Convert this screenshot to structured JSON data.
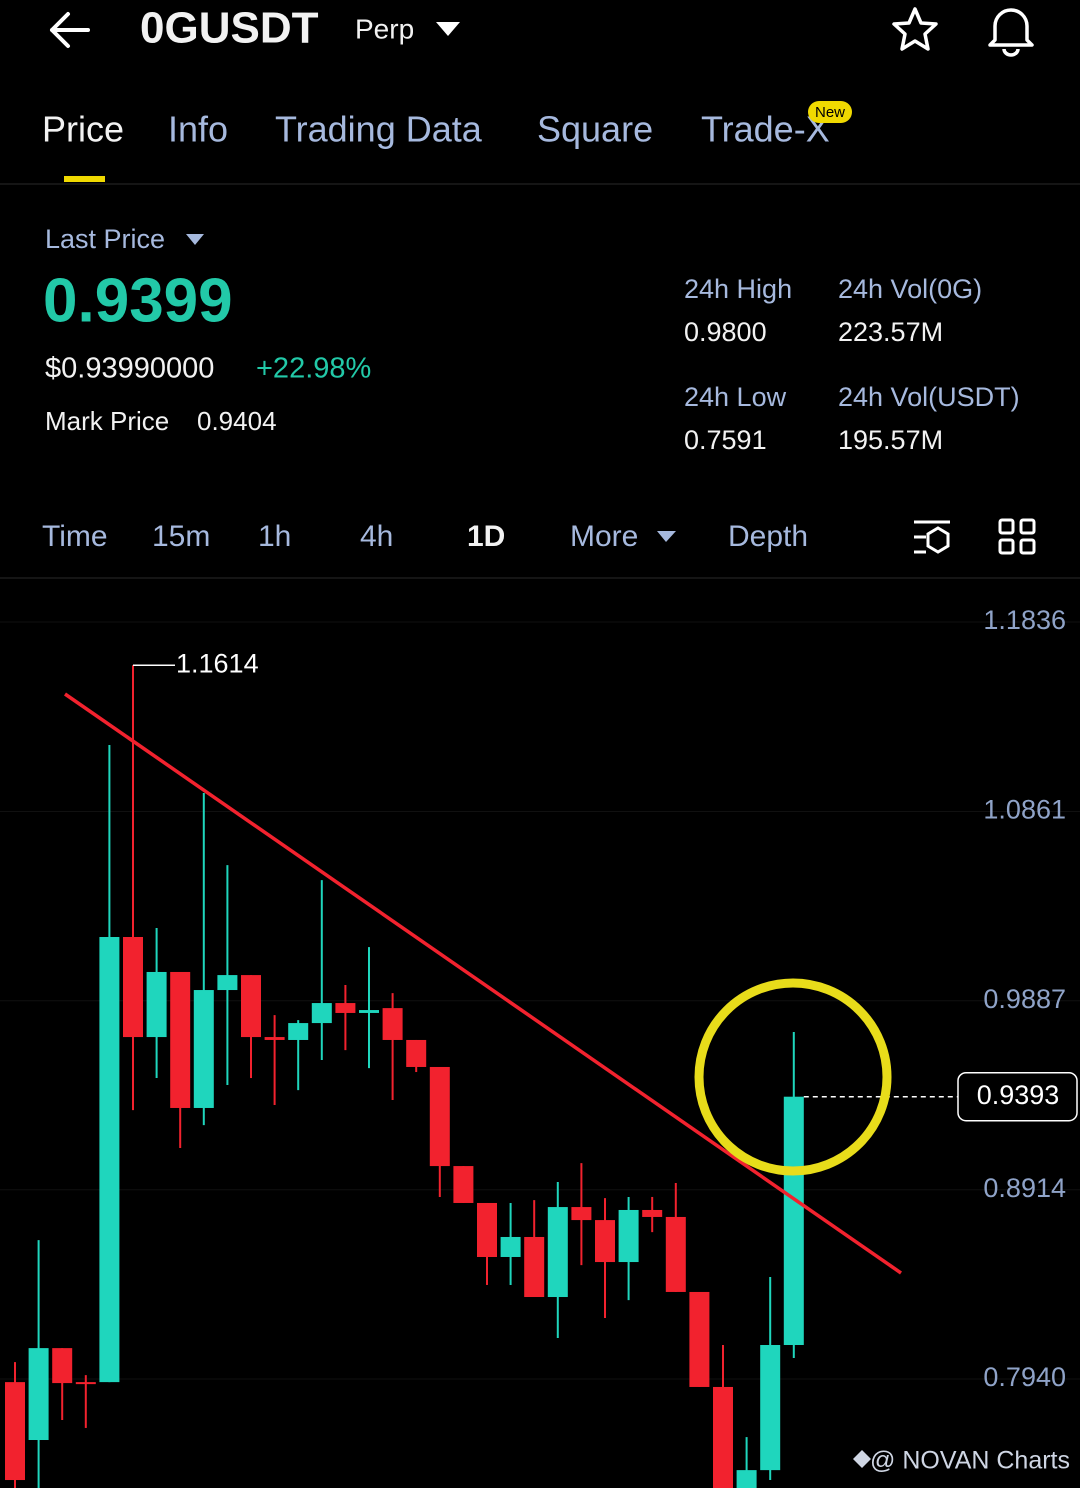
{
  "header": {
    "symbol": "0GUSDT",
    "contract": "Perp"
  },
  "tabs": [
    "Price",
    "Info",
    "Trading Data",
    "Square",
    "Trade-X"
  ],
  "badge": "New",
  "price_panel": {
    "price_type": "Last Price",
    "last_price": "0.9399",
    "usd_price": "$0.93990000",
    "change": "+22.98%",
    "mark_label": "Mark Price",
    "mark_price": "0.9404"
  },
  "stats": [
    {
      "label": "24h High",
      "value": "0.9800"
    },
    {
      "label": "24h Vol(0G)",
      "value": "223.57M"
    },
    {
      "label": "24h Low",
      "value": "0.7591"
    },
    {
      "label": "24h Vol(USDT)",
      "value": "195.57M"
    }
  ],
  "intervals": [
    "Time",
    "15m",
    "1h",
    "4h",
    "1D",
    "More",
    "Depth"
  ],
  "watermark": "@ NOVAN Charts",
  "chart_data": {
    "type": "candlestick",
    "open": [
      0.7924,
      0.7626,
      0.8099,
      0.7924,
      0.7924,
      1.0215,
      0.97,
      1.0035,
      0.9335,
      0.9942,
      1.0019,
      0.97,
      0.9685,
      0.9772,
      0.9875,
      0.9824,
      0.9849,
      0.9685,
      0.9546,
      0.9036,
      0.8846,
      0.8568,
      0.8671,
      0.8362,
      0.8825,
      0.8758,
      0.8542,
      0.881,
      0.8774,
      0.8388,
      0.7899,
      0.7379,
      0.7471,
      0.8115
    ],
    "high": [
      0.8027,
      0.8655,
      0.8099,
      0.796,
      1.1203,
      1.1614,
      1.0261,
      1.0035,
      1.0956,
      1.0585,
      1.0019,
      0.9813,
      0.9787,
      1.0508,
      0.9968,
      1.0163,
      0.9926,
      0.9685,
      0.9546,
      0.9036,
      0.8846,
      0.8846,
      0.8861,
      0.8954,
      0.9051,
      0.8871,
      0.8877,
      0.8877,
      0.8949,
      0.8388,
      0.8115,
      0.7641,
      0.8465,
      0.9726
    ],
    "low": [
      0.7379,
      0.7379,
      0.7729,
      0.7688,
      0.7924,
      0.9324,
      0.9489,
      0.9129,
      0.9247,
      0.9453,
      0.9489,
      0.935,
      0.9427,
      0.9582,
      0.9633,
      0.954,
      0.9376,
      0.952,
      0.8877,
      0.8846,
      0.8424,
      0.8424,
      0.8362,
      0.8151,
      0.8526,
      0.8254,
      0.8346,
      0.8696,
      0.8388,
      0.7899,
      0.7379,
      0.7379,
      0.742,
      0.8048
    ],
    "close": [
      0.742,
      0.8099,
      0.7919,
      0.7924,
      1.0215,
      0.97,
      1.0035,
      0.9335,
      0.9942,
      1.0019,
      0.97,
      0.9685,
      0.9772,
      0.9875,
      0.9824,
      0.9839,
      0.9685,
      0.9546,
      0.9036,
      0.8846,
      0.8568,
      0.8671,
      0.8362,
      0.8825,
      0.8758,
      0.8542,
      0.881,
      0.8774,
      0.8388,
      0.7899,
      0.7379,
      0.7471,
      0.8115,
      0.9393
    ],
    "up_color": "#1fd6bd",
    "down_color": "#f2222e",
    "ylim": [
      0.7379,
      1.2001
    ],
    "yticks": [
      1.1836,
      1.0861,
      0.9887,
      0.8914,
      {
        "value": 0.794,
        "label": "0.7940"
      }
    ],
    "grid": true
  }
}
